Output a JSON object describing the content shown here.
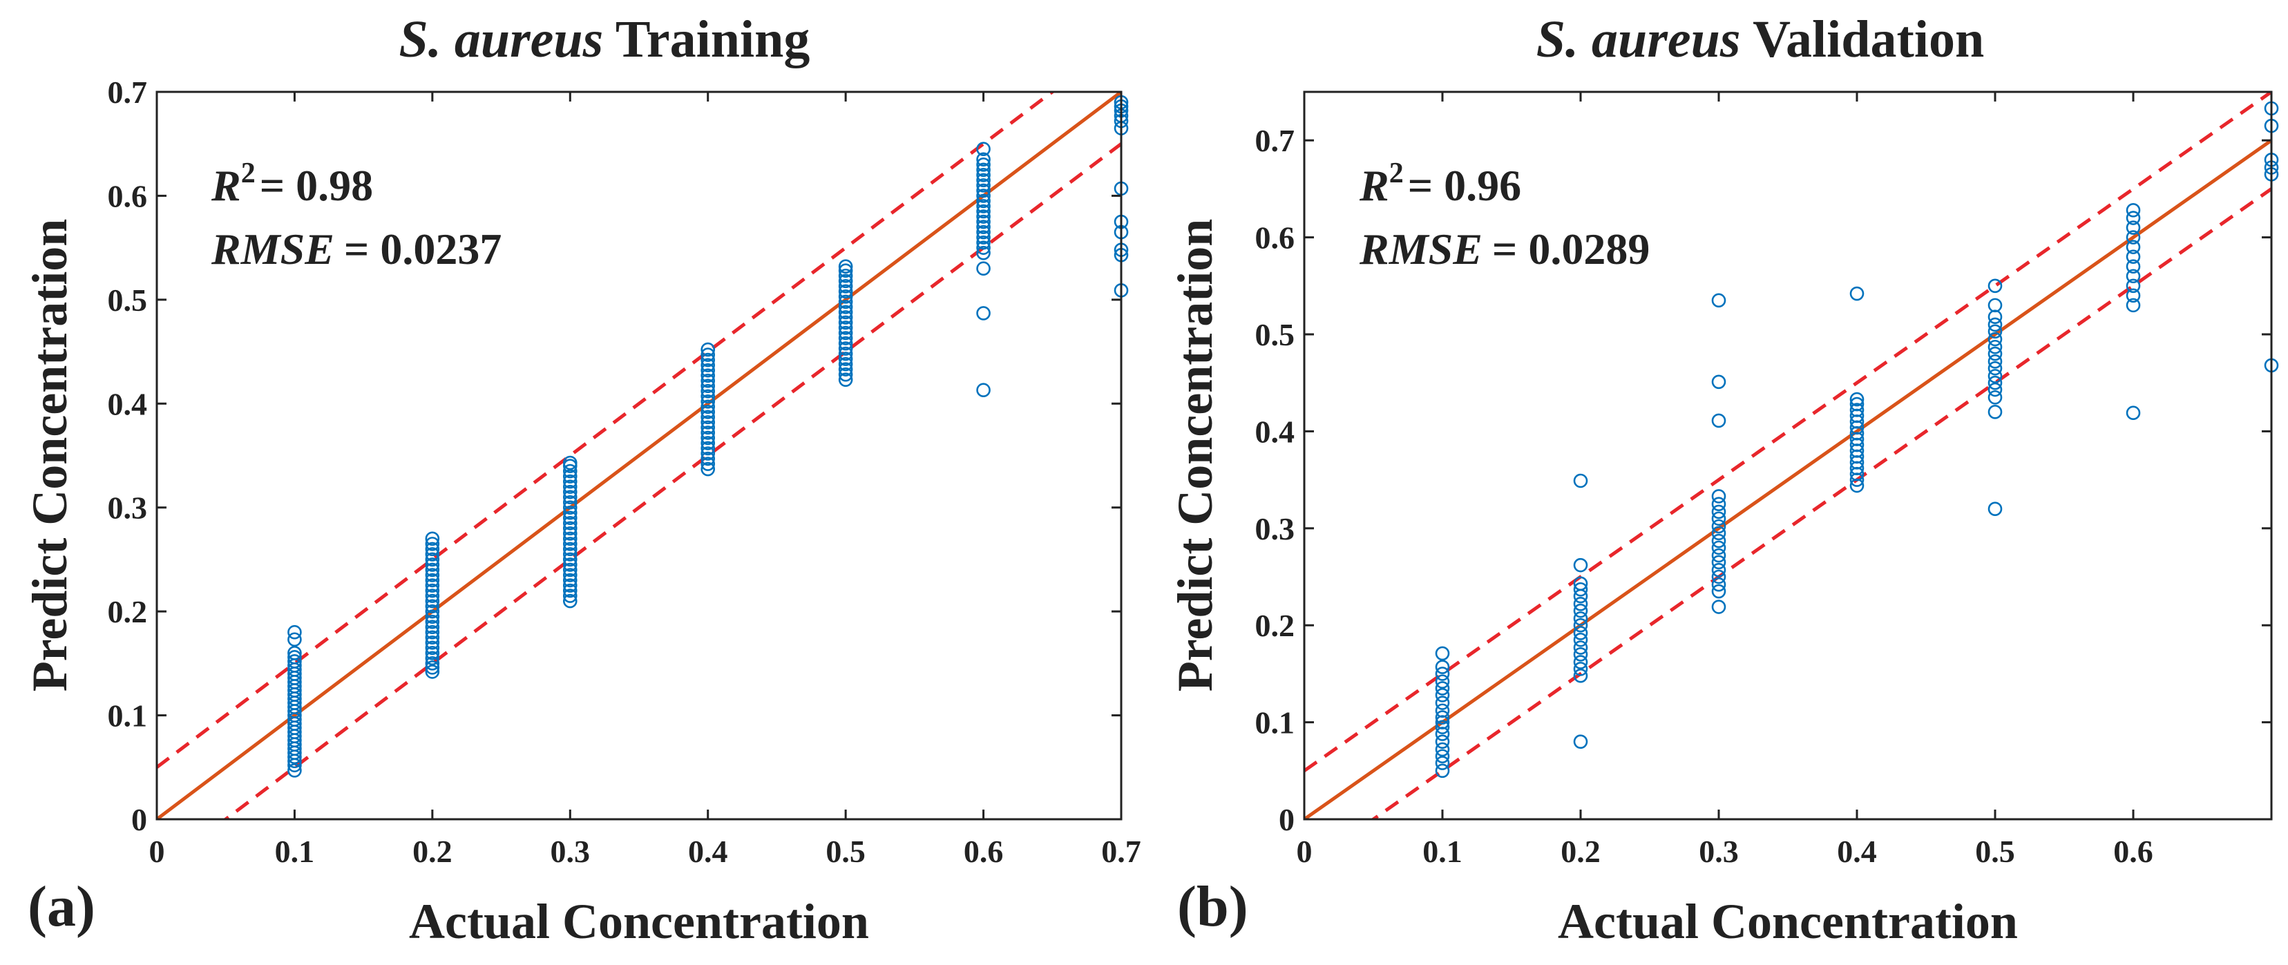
{
  "chart_data": [
    {
      "type": "scatter",
      "panel_label": "(a)",
      "title_species": "S. aureus",
      "title_rest": "Training",
      "xlabel": "Actual Concentration",
      "ylabel": "Predict Concentration",
      "xlim": [
        0,
        0.7
      ],
      "ylim": [
        0,
        0.7
      ],
      "xticks": [
        "0",
        "0.1",
        "0.2",
        "0.3",
        "0.4",
        "0.5",
        "0.6",
        "0.7"
      ],
      "yticks": [
        "0",
        "0.1",
        "0.2",
        "0.3",
        "0.4",
        "0.5",
        "0.6",
        "0.7"
      ],
      "xtick_values": [
        0,
        0.1,
        0.2,
        0.3,
        0.4,
        0.5,
        0.6,
        0.7
      ],
      "ytick_values": [
        0,
        0.1,
        0.2,
        0.3,
        0.4,
        0.5,
        0.6,
        0.7
      ],
      "stats": {
        "r2_label": "R",
        "r2_sup": "2",
        "r2_value": "= 0.98",
        "rmse_label": "RMSE",
        "rmse_value": "= 0.0237"
      },
      "lines": {
        "identity": {
          "slope": 1,
          "intercept": 0
        },
        "bounds": [
          0.05,
          -0.05
        ]
      },
      "points": {
        "0.1": [
          0.047,
          0.052,
          0.056,
          0.06,
          0.064,
          0.068,
          0.072,
          0.076,
          0.08,
          0.084,
          0.088,
          0.092,
          0.096,
          0.1,
          0.104,
          0.108,
          0.112,
          0.116,
          0.12,
          0.124,
          0.128,
          0.132,
          0.136,
          0.14,
          0.144,
          0.148,
          0.152,
          0.156,
          0.16,
          0.173,
          0.18
        ],
        "0.2": [
          0.142,
          0.146,
          0.15,
          0.155,
          0.16,
          0.165,
          0.17,
          0.175,
          0.18,
          0.185,
          0.19,
          0.195,
          0.2,
          0.205,
          0.21,
          0.215,
          0.22,
          0.225,
          0.23,
          0.235,
          0.24,
          0.245,
          0.25,
          0.255,
          0.26,
          0.265,
          0.27
        ],
        "0.3": [
          0.21,
          0.215,
          0.22,
          0.225,
          0.23,
          0.235,
          0.24,
          0.245,
          0.25,
          0.255,
          0.26,
          0.265,
          0.27,
          0.275,
          0.28,
          0.285,
          0.29,
          0.295,
          0.3,
          0.305,
          0.31,
          0.315,
          0.32,
          0.325,
          0.33,
          0.335,
          0.34,
          0.343
        ],
        "0.4": [
          0.337,
          0.342,
          0.347,
          0.352,
          0.357,
          0.362,
          0.367,
          0.372,
          0.377,
          0.382,
          0.387,
          0.392,
          0.397,
          0.402,
          0.407,
          0.412,
          0.417,
          0.422,
          0.427,
          0.432,
          0.437,
          0.442,
          0.447,
          0.452
        ],
        "0.5": [
          0.423,
          0.428,
          0.433,
          0.438,
          0.443,
          0.448,
          0.453,
          0.458,
          0.463,
          0.468,
          0.473,
          0.478,
          0.483,
          0.488,
          0.493,
          0.498,
          0.503,
          0.508,
          0.513,
          0.518,
          0.523,
          0.528,
          0.532
        ],
        "0.6": [
          0.413,
          0.487,
          0.53,
          0.545,
          0.55,
          0.555,
          0.56,
          0.565,
          0.57,
          0.575,
          0.58,
          0.585,
          0.59,
          0.595,
          0.6,
          0.605,
          0.61,
          0.615,
          0.62,
          0.625,
          0.63,
          0.635,
          0.645
        ],
        "0.7": [
          0.509,
          0.543,
          0.548,
          0.565,
          0.575,
          0.607,
          0.665,
          0.672,
          0.677,
          0.682,
          0.686,
          0.69
        ]
      }
    },
    {
      "type": "scatter",
      "panel_label": "(b)",
      "title_species": "S. aureus",
      "title_rest": "Validation",
      "xlabel": "Actual Concentration",
      "ylabel": "Predict Concentration",
      "xlim": [
        0,
        0.7
      ],
      "ylim": [
        0,
        0.75
      ],
      "xticks": [
        "0",
        "0.1",
        "0.2",
        "0.3",
        "0.4",
        "0.5",
        "0.6"
      ],
      "yticks": [
        "0",
        "0.1",
        "0.2",
        "0.3",
        "0.4",
        "0.5",
        "0.6",
        "0.7"
      ],
      "xtick_values": [
        0,
        0.1,
        0.2,
        0.3,
        0.4,
        0.5,
        0.6
      ],
      "ytick_values": [
        0,
        0.1,
        0.2,
        0.3,
        0.4,
        0.5,
        0.6,
        0.7
      ],
      "stats": {
        "r2_label": "R",
        "r2_sup": "2",
        "r2_value": "= 0.96",
        "rmse_label": "RMSE",
        "rmse_value": "= 0.0289"
      },
      "lines": {
        "identity": {
          "slope": 1,
          "intercept": 0
        },
        "bounds": [
          0.05,
          -0.05
        ]
      },
      "points": {
        "0.1": [
          0.05,
          0.058,
          0.065,
          0.072,
          0.08,
          0.088,
          0.095,
          0.1,
          0.105,
          0.112,
          0.12,
          0.128,
          0.135,
          0.142,
          0.15,
          0.157,
          0.171
        ],
        "0.2": [
          0.08,
          0.148,
          0.155,
          0.162,
          0.17,
          0.177,
          0.185,
          0.192,
          0.2,
          0.207,
          0.215,
          0.222,
          0.23,
          0.237,
          0.243,
          0.262,
          0.349
        ],
        "0.3": [
          0.219,
          0.235,
          0.242,
          0.25,
          0.257,
          0.265,
          0.272,
          0.28,
          0.287,
          0.295,
          0.302,
          0.31,
          0.317,
          0.325,
          0.333,
          0.411,
          0.451,
          0.535
        ],
        "0.4": [
          0.344,
          0.35,
          0.356,
          0.362,
          0.368,
          0.374,
          0.38,
          0.386,
          0.392,
          0.398,
          0.404,
          0.41,
          0.416,
          0.422,
          0.428,
          0.433,
          0.542
        ],
        "0.5": [
          0.32,
          0.42,
          0.435,
          0.443,
          0.45,
          0.457,
          0.465,
          0.472,
          0.48,
          0.487,
          0.495,
          0.503,
          0.51,
          0.518,
          0.53,
          0.55
        ],
        "0.6": [
          0.419,
          0.53,
          0.54,
          0.55,
          0.56,
          0.57,
          0.58,
          0.59,
          0.6,
          0.61,
          0.62,
          0.628
        ],
        "0.7": [
          0.468,
          0.665,
          0.672,
          0.68,
          0.715,
          0.733
        ]
      }
    }
  ]
}
